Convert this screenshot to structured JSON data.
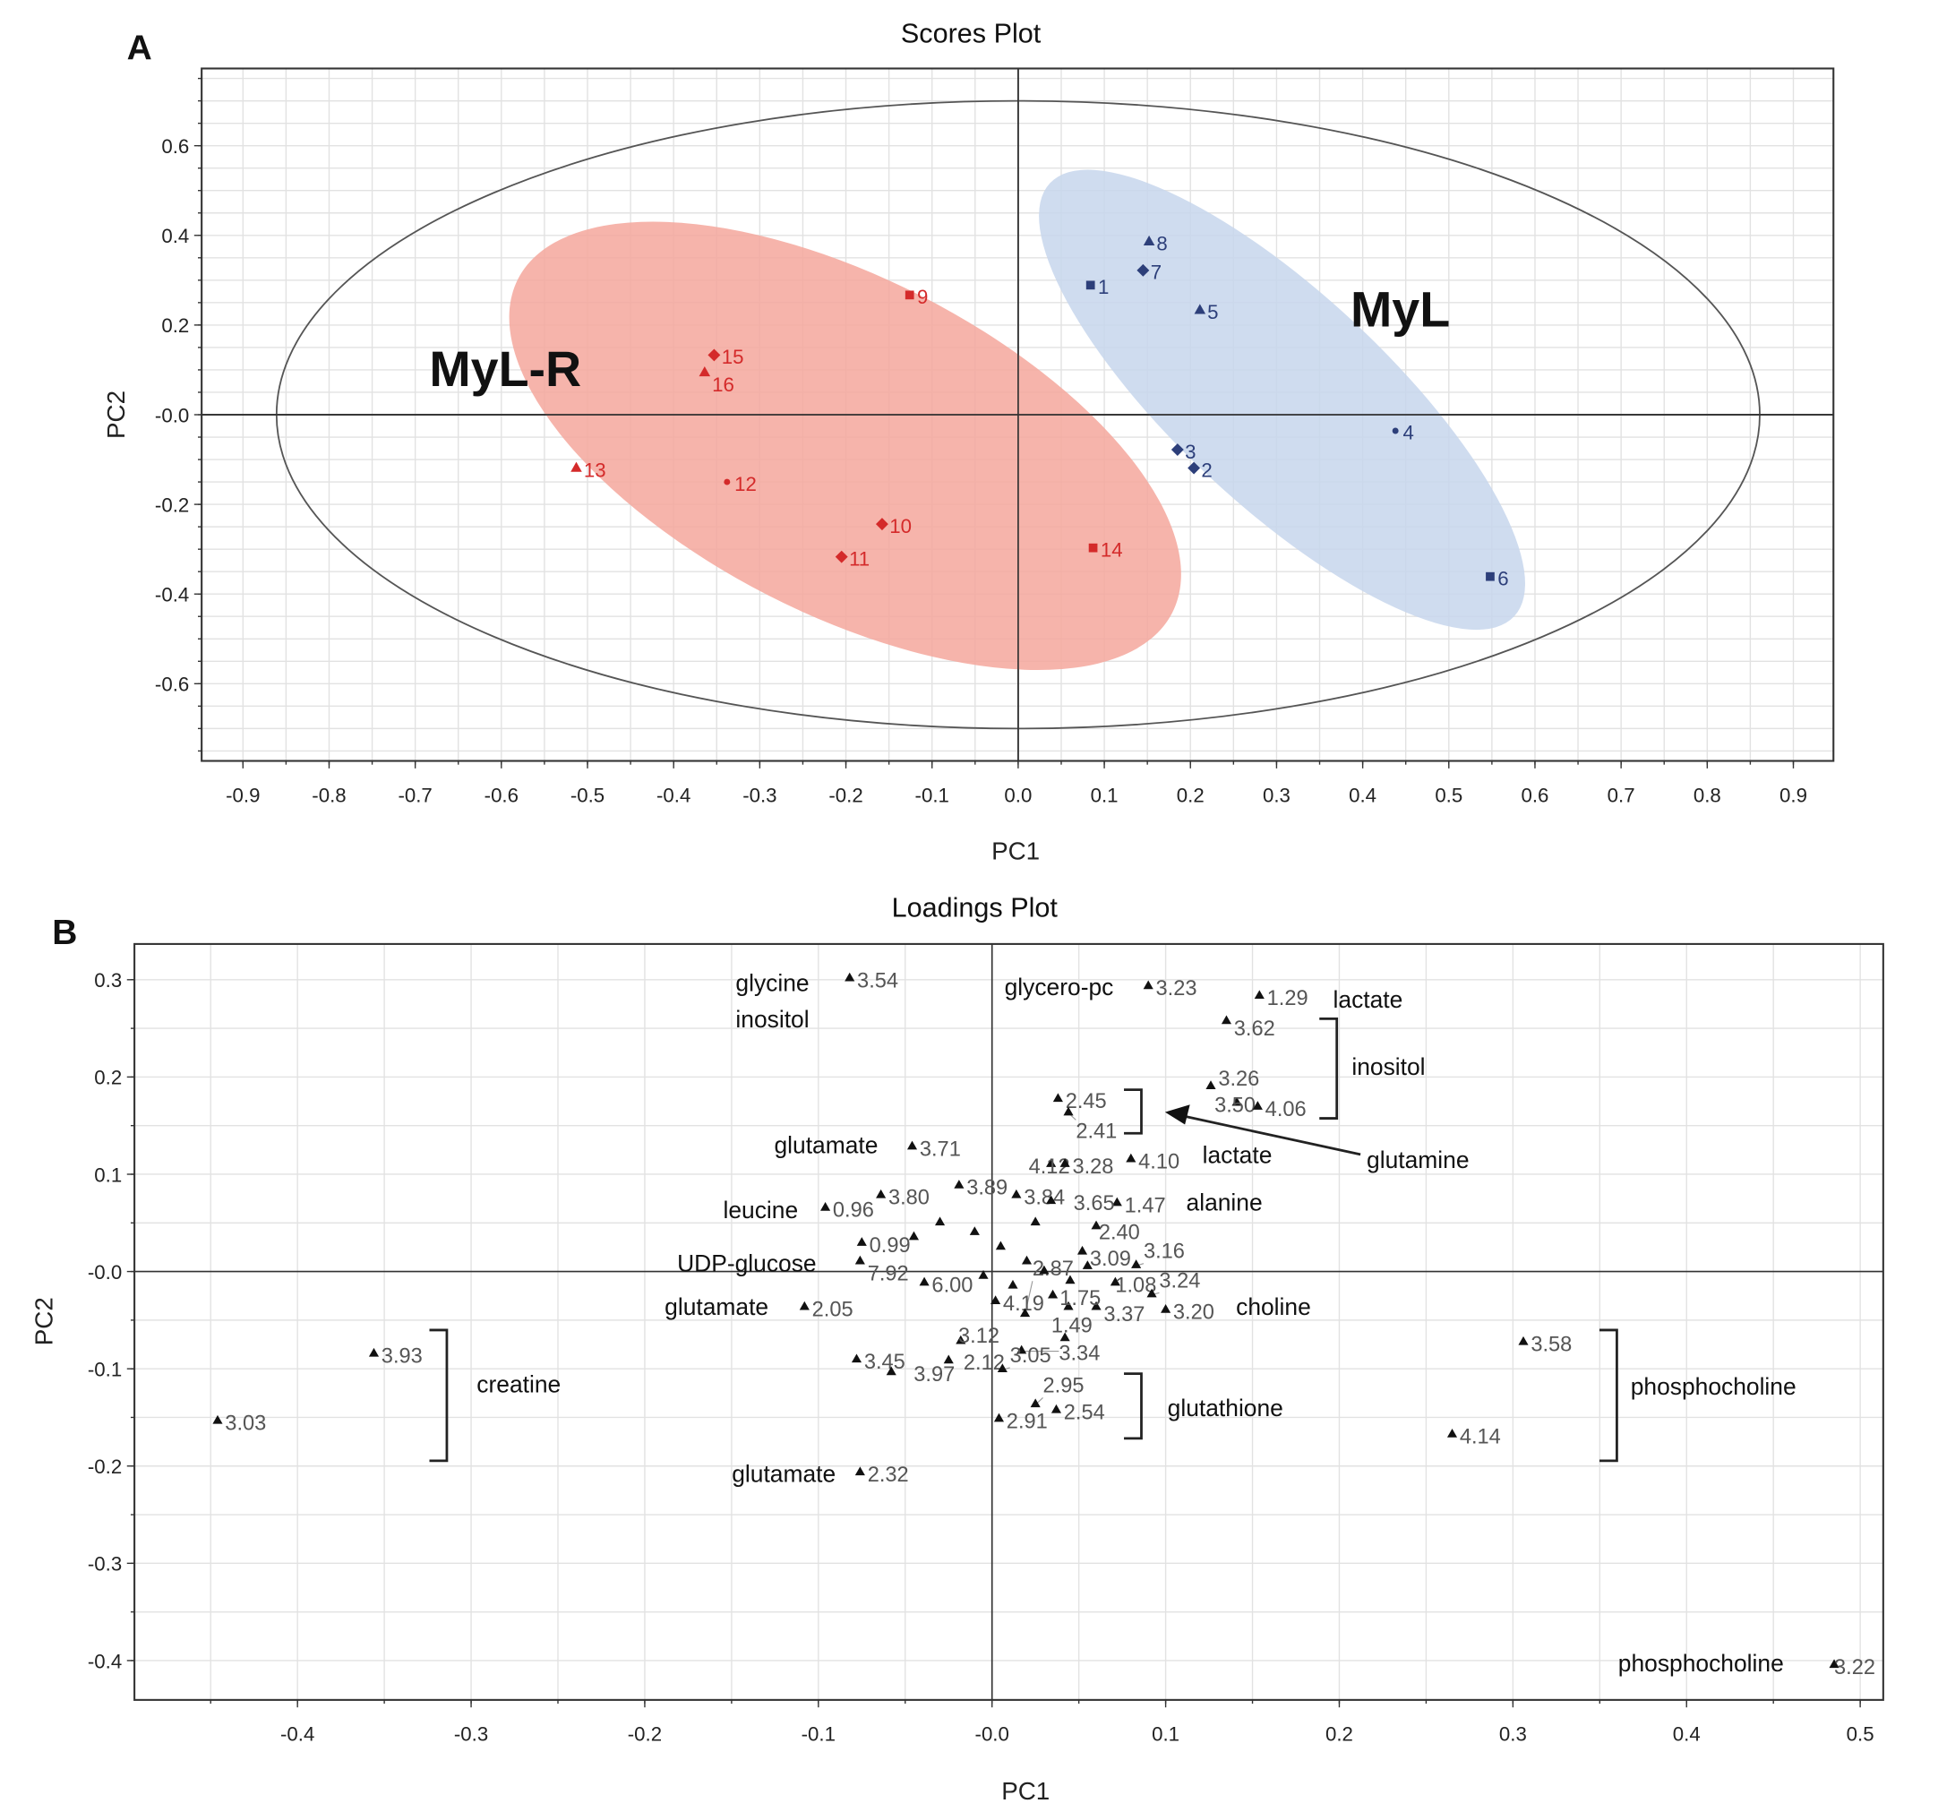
{
  "chart_data": [
    {
      "panel": "A",
      "type": "scatter",
      "title": "Scores Plot",
      "xlabel": "PC1",
      "ylabel": "PC2",
      "xlim": [
        -0.948,
        0.947
      ],
      "ylim": [
        -0.772,
        0.772
      ],
      "grid": true,
      "xticks": [
        "-0.9",
        "-0.8",
        "-0.7",
        "-0.6",
        "-0.5",
        "-0.4",
        "-0.3",
        "-0.2",
        "-0.1",
        "0.0",
        "0.1",
        "0.2",
        "0.3",
        "0.4",
        "0.5",
        "0.6",
        "0.7",
        "0.8",
        "0.9"
      ],
      "xtick_values": [
        -0.9,
        -0.8,
        -0.7,
        -0.6,
        -0.5,
        -0.4,
        -0.3,
        -0.2,
        -0.1,
        0,
        0.1,
        0.2,
        0.3,
        0.4,
        0.5,
        0.6,
        0.7,
        0.8,
        0.9
      ],
      "yticks": [
        "0.6",
        "0.4",
        "0.2",
        "-0.0",
        "-0.2",
        "-0.4",
        "-0.6"
      ],
      "ytick_values": [
        0.6,
        0.4,
        0.2,
        0,
        -0.2,
        -0.4,
        -0.6
      ],
      "hotelling_ellipse": {
        "cx": 0,
        "cy": 0,
        "rx": 0.861,
        "ry": 0.7
      },
      "groups": [
        {
          "name": "MyL-R",
          "color": "#d42a2a",
          "fill": "#f4a79c"
        },
        {
          "name": "MyL",
          "color": "#2d3f7a",
          "fill": "#c7d6ec"
        }
      ],
      "points": [
        {
          "label": "1",
          "x": 0.084,
          "y": 0.289,
          "group": 1,
          "marker": "square"
        },
        {
          "label": "2",
          "x": 0.204,
          "y": -0.119,
          "group": 1,
          "marker": "diamond"
        },
        {
          "label": "3",
          "x": 0.185,
          "y": -0.078,
          "group": 1,
          "marker": "diamond"
        },
        {
          "label": "4",
          "x": 0.438,
          "y": -0.036,
          "group": 1,
          "marker": "dot"
        },
        {
          "label": "5",
          "x": 0.211,
          "y": 0.233,
          "group": 1,
          "marker": "triangle"
        },
        {
          "label": "6",
          "x": 0.548,
          "y": -0.361,
          "group": 1,
          "marker": "square"
        },
        {
          "label": "7",
          "x": 0.145,
          "y": 0.322,
          "group": 1,
          "marker": "diamond"
        },
        {
          "label": "8",
          "x": 0.152,
          "y": 0.386,
          "group": 1,
          "marker": "triangle"
        },
        {
          "label": "9",
          "x": -0.126,
          "y": 0.267,
          "group": 0,
          "marker": "square"
        },
        {
          "label": "10",
          "x": -0.158,
          "y": -0.244,
          "group": 0,
          "marker": "diamond"
        },
        {
          "label": "11",
          "x": -0.205,
          "y": -0.317,
          "group": 0,
          "marker": "diamond"
        },
        {
          "label": "12",
          "x": -0.338,
          "y": -0.15,
          "group": 0,
          "marker": "dot"
        },
        {
          "label": "13",
          "x": -0.513,
          "y": -0.119,
          "group": 0,
          "marker": "triangle"
        },
        {
          "label": "14",
          "x": 0.087,
          "y": -0.297,
          "group": 0,
          "marker": "square"
        },
        {
          "label": "15",
          "x": -0.353,
          "y": 0.133,
          "group": 0,
          "marker": "diamond"
        },
        {
          "label": "16",
          "x": -0.364,
          "y": 0.094,
          "group": 0,
          "marker": "triangle"
        }
      ]
    },
    {
      "panel": "B",
      "type": "scatter",
      "title": "Loadings Plot",
      "xlabel": "PC1",
      "ylabel": "PC2",
      "xlim": [
        -0.494,
        0.513
      ],
      "ylim": [
        -0.44,
        0.337
      ],
      "grid": true,
      "xticks": [
        "-0.4",
        "-0.3",
        "-0.2",
        "-0.1",
        "-0.0",
        "0.1",
        "0.2",
        "0.3",
        "0.4",
        "0.5"
      ],
      "xtick_values": [
        -0.4,
        -0.3,
        -0.2,
        -0.1,
        0,
        0.1,
        0.2,
        0.3,
        0.4,
        0.5
      ],
      "yticks": [
        "0.3",
        "0.2",
        "0.1",
        "-0.0",
        "-0.1",
        "-0.2",
        "-0.3",
        "-0.4"
      ],
      "ytick_values": [
        0.3,
        0.2,
        0.1,
        0,
        -0.1,
        -0.2,
        -0.3,
        -0.4
      ],
      "points": [
        {
          "label": "3.54",
          "x": -0.082,
          "y": 0.301
        },
        {
          "label": "3.23",
          "x": 0.09,
          "y": 0.293
        },
        {
          "label": "1.29",
          "x": 0.154,
          "y": 0.283
        },
        {
          "label": "3.62",
          "x": 0.135,
          "y": 0.257
        },
        {
          "label": "3.26",
          "x": 0.126,
          "y": 0.19
        },
        {
          "label": "3.50",
          "x": 0.141,
          "y": 0.173
        },
        {
          "label": "4.06",
          "x": 0.153,
          "y": 0.169
        },
        {
          "label": "2.45",
          "x": 0.038,
          "y": 0.177
        },
        {
          "label": "2.41",
          "x": 0.044,
          "y": 0.163
        },
        {
          "label": "3.71",
          "x": -0.046,
          "y": 0.128
        },
        {
          "label": "4.12",
          "x": 0.034,
          "y": 0.11
        },
        {
          "label": "3.28",
          "x": 0.042,
          "y": 0.11
        },
        {
          "label": "4.10",
          "x": 0.08,
          "y": 0.115
        },
        {
          "label": "1.47",
          "x": 0.072,
          "y": 0.07
        },
        {
          "label": "0.96",
          "x": -0.096,
          "y": 0.065
        },
        {
          "label": "3.80",
          "x": -0.064,
          "y": 0.078
        },
        {
          "label": "3.89",
          "x": -0.019,
          "y": 0.088
        },
        {
          "label": "3.84",
          "x": 0.014,
          "y": 0.078
        },
        {
          "label": "3.65",
          "x": 0.034,
          "y": 0.072
        },
        {
          "label": "2.40",
          "x": 0.06,
          "y": 0.046
        },
        {
          "label": "0.99",
          "x": -0.075,
          "y": 0.029
        },
        {
          "label": "7.92",
          "x": -0.076,
          "y": 0.01
        },
        {
          "label": "3.16",
          "x": 0.083,
          "y": 0.006
        },
        {
          "label": "3.09",
          "x": 0.052,
          "y": 0.02
        },
        {
          "label": "1.08",
          "x": 0.071,
          "y": -0.012
        },
        {
          "label": "3.24",
          "x": 0.092,
          "y": -0.024
        },
        {
          "label": "3.20",
          "x": 0.1,
          "y": -0.04
        },
        {
          "label": "3.37",
          "x": 0.06,
          "y": -0.037
        },
        {
          "label": "1.75",
          "x": 0.044,
          "y": -0.037
        },
        {
          "label": "4.19",
          "x": 0.002,
          "y": -0.031
        },
        {
          "label": "2.87",
          "x": 0.019,
          "y": -0.044
        },
        {
          "label": "2.05",
          "x": -0.108,
          "y": -0.037
        },
        {
          "label": "6.00",
          "x": -0.039,
          "y": -0.012
        },
        {
          "label": "1.49",
          "x": 0.042,
          "y": -0.069
        },
        {
          "label": "3.34",
          "x": 0.017,
          "y": -0.082
        },
        {
          "label": "3.12",
          "x": -0.018,
          "y": -0.072
        },
        {
          "label": "2.12",
          "x": -0.025,
          "y": -0.092
        },
        {
          "label": "3.45",
          "x": -0.078,
          "y": -0.091
        },
        {
          "label": "3.97",
          "x": -0.058,
          "y": -0.104
        },
        {
          "label": "3.05",
          "x": 0.006,
          "y": -0.101
        },
        {
          "label": "2.95",
          "x": 0.025,
          "y": -0.137
        },
        {
          "label": "2.54",
          "x": 0.037,
          "y": -0.143
        },
        {
          "label": "2.91",
          "x": 0.004,
          "y": -0.152
        },
        {
          "label": "2.32",
          "x": -0.076,
          "y": -0.207
        },
        {
          "label": "3.93",
          "x": -0.356,
          "y": -0.085
        },
        {
          "label": "3.03",
          "x": -0.446,
          "y": -0.154
        },
        {
          "label": "3.58",
          "x": 0.306,
          "y": -0.073
        },
        {
          "label": "4.14",
          "x": 0.265,
          "y": -0.168
        },
        {
          "label": "3.22",
          "x": 0.485,
          "y": -0.405
        },
        {
          "label": "",
          "x": -0.01,
          "y": 0.04
        },
        {
          "label": "",
          "x": 0.005,
          "y": 0.025
        },
        {
          "label": "",
          "x": 0.02,
          "y": 0.01
        },
        {
          "label": "",
          "x": 0.03,
          "y": 0.0
        },
        {
          "label": "",
          "x": 0.045,
          "y": -0.01
        },
        {
          "label": "",
          "x": 0.012,
          "y": -0.015
        },
        {
          "label": "",
          "x": -0.03,
          "y": 0.05
        },
        {
          "label": "",
          "x": -0.045,
          "y": 0.035
        },
        {
          "label": "",
          "x": 0.025,
          "y": 0.05
        },
        {
          "label": "",
          "x": 0.055,
          "y": 0.005
        },
        {
          "label": "",
          "x": -0.005,
          "y": -0.005
        },
        {
          "label": "",
          "x": 0.035,
          "y": -0.025
        }
      ],
      "annotations": [
        {
          "text": "glycine"
        },
        {
          "text": "inositol"
        },
        {
          "text": "glycero-pc"
        },
        {
          "text": "lactate"
        },
        {
          "text": "inositol"
        },
        {
          "text": "lactate"
        },
        {
          "text": "glutamine"
        },
        {
          "text": "glutamate"
        },
        {
          "text": "alanine"
        },
        {
          "text": "leucine"
        },
        {
          "text": "UDP-glucose"
        },
        {
          "text": "glutamate"
        },
        {
          "text": "choline"
        },
        {
          "text": "creatine"
        },
        {
          "text": "glutathione"
        },
        {
          "text": "phosphocholine"
        },
        {
          "text": "glutamate"
        },
        {
          "text": "phosphocholine"
        }
      ]
    }
  ]
}
